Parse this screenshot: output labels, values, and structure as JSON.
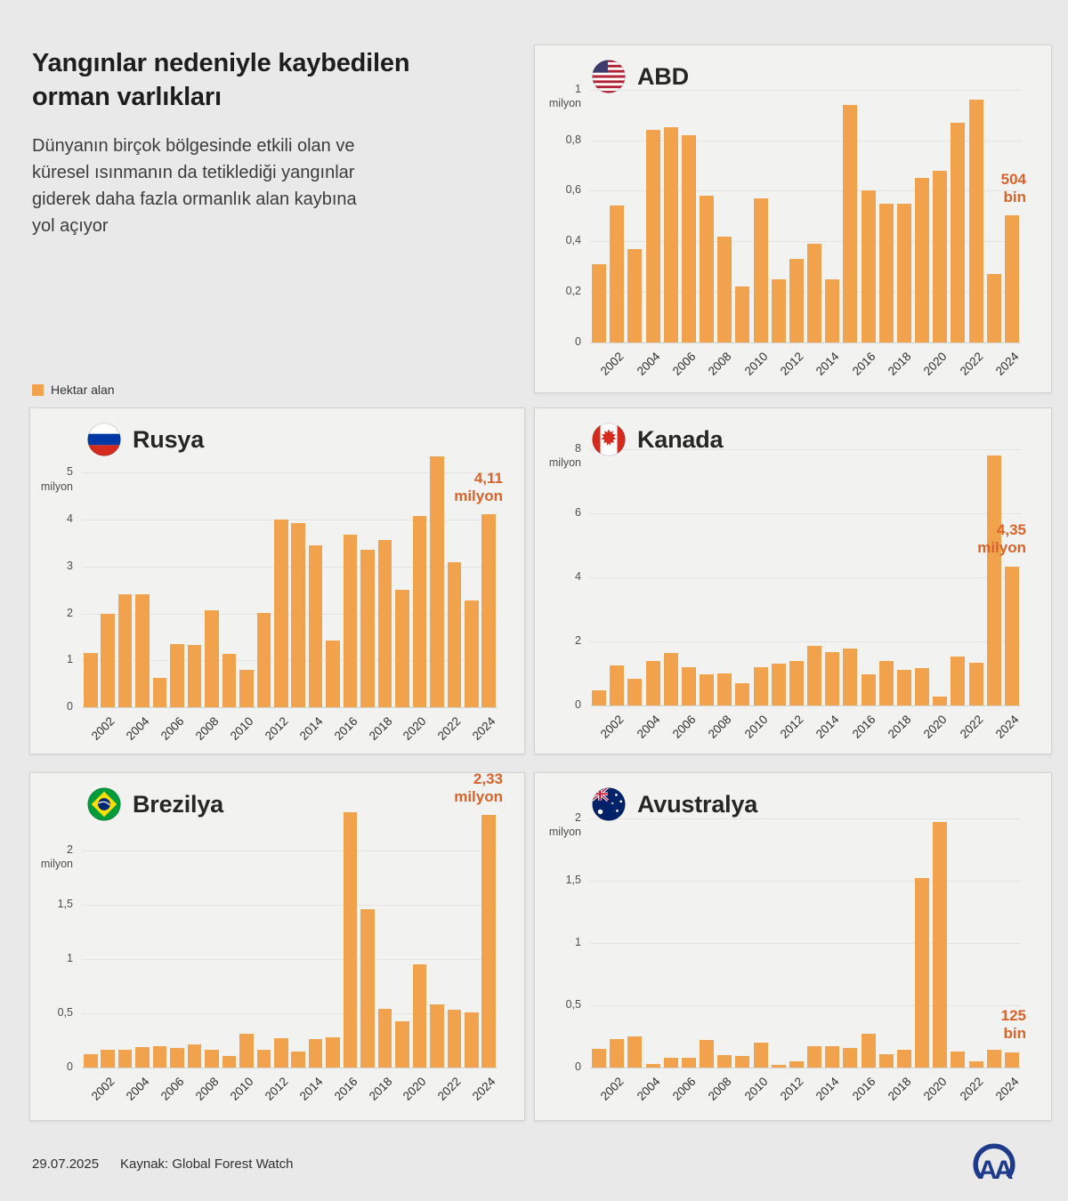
{
  "page": {
    "title": "Yangınlar nedeniyle kaybedilen orman varlıkları",
    "subtitle": "Dünyanın birçok bölgesinde etkili olan ve küresel ısınmanın da tetiklediği yangınlar giderek daha fazla ormanlık alan kaybına yol açıyor",
    "legend": {
      "label": "Hektar alan"
    },
    "footer": {
      "date": "29.07.2025",
      "source": "Kaynak: Global Forest Watch",
      "logo": "AA"
    }
  },
  "colors": {
    "background": "#E9E9E9",
    "panel": "#F2F2F1",
    "bar": "#F0A24C",
    "annotation": "#D9632B",
    "logo_blue": "#1E3A8C"
  },
  "chart_data": [
    {
      "type": "bar",
      "country": "ABD",
      "flag_icon": "us-flag-icon",
      "unit": "milyon hektar",
      "years": [
        2001,
        2002,
        2003,
        2004,
        2005,
        2006,
        2007,
        2008,
        2009,
        2010,
        2011,
        2012,
        2013,
        2014,
        2015,
        2016,
        2017,
        2018,
        2019,
        2020,
        2021,
        2022,
        2023,
        2024
      ],
      "values": [
        0.31,
        0.54,
        0.37,
        0.84,
        0.85,
        0.82,
        0.58,
        0.42,
        0.22,
        0.57,
        0.25,
        0.33,
        0.39,
        0.25,
        0.94,
        0.6,
        0.55,
        0.55,
        0.65,
        0.68,
        0.87,
        0.96,
        0.27,
        0.504
      ],
      "ylim": [
        0,
        1.02
      ],
      "yticks": [
        {
          "value": 1,
          "label": "1",
          "sub": "milyon"
        },
        {
          "value": 0.8,
          "label": "0,8"
        },
        {
          "value": 0.6,
          "label": "0,6"
        },
        {
          "value": 0.4,
          "label": "0,4"
        },
        {
          "value": 0.2,
          "label": "0,2"
        },
        {
          "value": 0,
          "label": "0"
        }
      ],
      "xtick_step": 2,
      "annotation": {
        "lines": [
          "504",
          "bin"
        ],
        "value": 0.504
      }
    },
    {
      "type": "bar",
      "country": "Rusya",
      "flag_icon": "russia-flag-icon",
      "unit": "milyon hektar",
      "years": [
        2001,
        2002,
        2003,
        2004,
        2005,
        2006,
        2007,
        2008,
        2009,
        2010,
        2011,
        2012,
        2013,
        2014,
        2015,
        2016,
        2017,
        2018,
        2019,
        2020,
        2021,
        2022,
        2023,
        2024
      ],
      "values": [
        1.15,
        2.0,
        2.4,
        2.4,
        0.62,
        1.35,
        1.32,
        2.07,
        1.13,
        0.8,
        2.02,
        4.0,
        3.93,
        3.45,
        1.42,
        3.68,
        3.35,
        3.56,
        2.5,
        4.08,
        5.35,
        3.1,
        2.28,
        4.11
      ],
      "ylim": [
        0,
        5.5
      ],
      "yticks": [
        {
          "value": 5,
          "label": "5",
          "sub": "milyon"
        },
        {
          "value": 4,
          "label": "4"
        },
        {
          "value": 3,
          "label": "3"
        },
        {
          "value": 2,
          "label": "2"
        },
        {
          "value": 1,
          "label": "1"
        },
        {
          "value": 0,
          "label": "0"
        }
      ],
      "xtick_step": 2,
      "annotation": {
        "lines": [
          "4,11",
          "milyon"
        ],
        "value": 4.11
      }
    },
    {
      "type": "bar",
      "country": "Kanada",
      "flag_icon": "canada-flag-icon",
      "unit": "milyon hektar",
      "years": [
        2001,
        2002,
        2003,
        2004,
        2005,
        2006,
        2007,
        2008,
        2009,
        2010,
        2011,
        2012,
        2013,
        2014,
        2015,
        2016,
        2017,
        2018,
        2019,
        2020,
        2021,
        2022,
        2023,
        2024
      ],
      "values": [
        0.48,
        1.24,
        0.84,
        1.39,
        1.63,
        1.19,
        0.97,
        1.0,
        0.7,
        1.19,
        1.3,
        1.39,
        1.87,
        1.68,
        1.78,
        0.97,
        1.39,
        1.1,
        1.17,
        0.29,
        1.52,
        1.33,
        7.8,
        4.35
      ],
      "ylim": [
        0,
        8.2
      ],
      "yticks": [
        {
          "value": 8,
          "label": "8",
          "sub": "milyon"
        },
        {
          "value": 6,
          "label": "6"
        },
        {
          "value": 4,
          "label": "4"
        },
        {
          "value": 2,
          "label": "2"
        },
        {
          "value": 0,
          "label": "0"
        }
      ],
      "xtick_step": 2,
      "annotation": {
        "lines": [
          "4,35",
          "milyon"
        ],
        "value": 4.35
      }
    },
    {
      "type": "bar",
      "country": "Brezilya",
      "flag_icon": "brazil-flag-icon",
      "unit": "milyon hektar",
      "years": [
        2001,
        2002,
        2003,
        2004,
        2005,
        2006,
        2007,
        2008,
        2009,
        2010,
        2011,
        2012,
        2013,
        2014,
        2015,
        2016,
        2017,
        2018,
        2019,
        2020,
        2021,
        2022,
        2023,
        2024
      ],
      "values": [
        0.12,
        0.16,
        0.16,
        0.19,
        0.2,
        0.18,
        0.21,
        0.16,
        0.11,
        0.31,
        0.16,
        0.27,
        0.15,
        0.26,
        0.28,
        2.35,
        1.46,
        0.54,
        0.43,
        0.95,
        0.58,
        0.53,
        0.51,
        2.33
      ],
      "ylim": [
        0,
        2.45
      ],
      "yticks": [
        {
          "value": 2,
          "label": "2",
          "sub": "milyon"
        },
        {
          "value": 1.5,
          "label": "1,5"
        },
        {
          "value": 1,
          "label": "1"
        },
        {
          "value": 0.5,
          "label": "0,5"
        },
        {
          "value": 0,
          "label": "0"
        }
      ],
      "xtick_step": 2,
      "annotation": {
        "lines": [
          "2,33",
          "milyon"
        ],
        "value": 2.33
      }
    },
    {
      "type": "bar",
      "country": "Avustralya",
      "flag_icon": "australia-flag-icon",
      "unit": "milyon hektar",
      "years": [
        2001,
        2002,
        2003,
        2004,
        2005,
        2006,
        2007,
        2008,
        2009,
        2010,
        2011,
        2012,
        2013,
        2014,
        2015,
        2016,
        2017,
        2018,
        2019,
        2020,
        2021,
        2022,
        2023,
        2024
      ],
      "values": [
        0.15,
        0.23,
        0.25,
        0.03,
        0.08,
        0.08,
        0.22,
        0.1,
        0.09,
        0.2,
        0.02,
        0.05,
        0.17,
        0.17,
        0.16,
        0.27,
        0.11,
        0.14,
        1.52,
        1.97,
        0.13,
        0.05,
        0.14,
        0.125
      ],
      "ylim": [
        0,
        2.1
      ],
      "yticks": [
        {
          "value": 2,
          "label": "2",
          "sub": "milyon"
        },
        {
          "value": 1.5,
          "label": "1,5"
        },
        {
          "value": 1,
          "label": "1"
        },
        {
          "value": 0.5,
          "label": "0,5"
        },
        {
          "value": 0,
          "label": "0"
        }
      ],
      "xtick_step": 2,
      "annotation": {
        "lines": [
          "125",
          "bin"
        ],
        "value": 0.125
      }
    }
  ]
}
